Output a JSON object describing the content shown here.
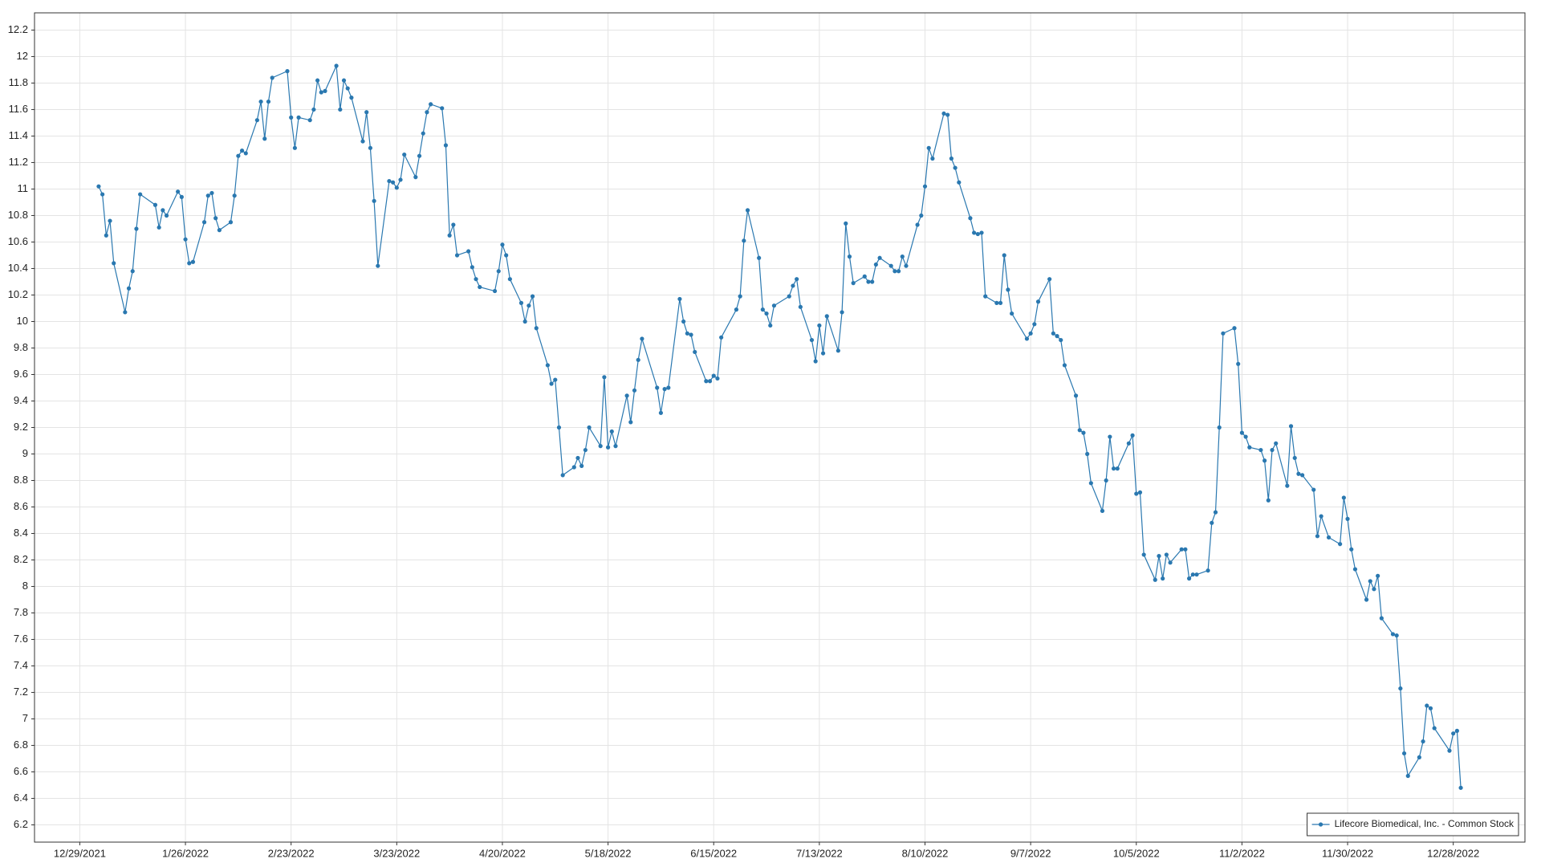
{
  "chart_data": {
    "type": "line",
    "x": [
      "2022-01-03",
      "2022-01-04",
      "2022-01-05",
      "2022-01-06",
      "2022-01-07",
      "2022-01-10",
      "2022-01-11",
      "2022-01-12",
      "2022-01-13",
      "2022-01-14",
      "2022-01-18",
      "2022-01-19",
      "2022-01-20",
      "2022-01-21",
      "2022-01-24",
      "2022-01-25",
      "2022-01-26",
      "2022-01-27",
      "2022-01-28",
      "2022-01-31",
      "2022-02-01",
      "2022-02-02",
      "2022-02-03",
      "2022-02-04",
      "2022-02-07",
      "2022-02-08",
      "2022-02-09",
      "2022-02-10",
      "2022-02-11",
      "2022-02-14",
      "2022-02-15",
      "2022-02-16",
      "2022-02-17",
      "2022-02-18",
      "2022-02-22",
      "2022-02-23",
      "2022-02-24",
      "2022-02-25",
      "2022-02-28",
      "2022-03-01",
      "2022-03-02",
      "2022-03-03",
      "2022-03-04",
      "2022-03-07",
      "2022-03-08",
      "2022-03-09",
      "2022-03-10",
      "2022-03-11",
      "2022-03-14",
      "2022-03-15",
      "2022-03-16",
      "2022-03-17",
      "2022-03-18",
      "2022-03-21",
      "2022-03-22",
      "2022-03-23",
      "2022-03-24",
      "2022-03-25",
      "2022-03-28",
      "2022-03-29",
      "2022-03-30",
      "2022-03-31",
      "2022-04-01",
      "2022-04-04",
      "2022-04-05",
      "2022-04-06",
      "2022-04-07",
      "2022-04-08",
      "2022-04-11",
      "2022-04-12",
      "2022-04-13",
      "2022-04-14",
      "2022-04-18",
      "2022-04-19",
      "2022-04-20",
      "2022-04-21",
      "2022-04-22",
      "2022-04-25",
      "2022-04-26",
      "2022-04-27",
      "2022-04-28",
      "2022-04-29",
      "2022-05-02",
      "2022-05-03",
      "2022-05-04",
      "2022-05-05",
      "2022-05-06",
      "2022-05-09",
      "2022-05-10",
      "2022-05-11",
      "2022-05-12",
      "2022-05-13",
      "2022-05-16",
      "2022-05-17",
      "2022-05-18",
      "2022-05-19",
      "2022-05-20",
      "2022-05-23",
      "2022-05-24",
      "2022-05-25",
      "2022-05-26",
      "2022-05-27",
      "2022-05-31",
      "2022-06-01",
      "2022-06-02",
      "2022-06-03",
      "2022-06-06",
      "2022-06-07",
      "2022-06-08",
      "2022-06-09",
      "2022-06-10",
      "2022-06-13",
      "2022-06-14",
      "2022-06-15",
      "2022-06-16",
      "2022-06-17",
      "2022-06-21",
      "2022-06-22",
      "2022-06-23",
      "2022-06-24",
      "2022-06-27",
      "2022-06-28",
      "2022-06-29",
      "2022-06-30",
      "2022-07-01",
      "2022-07-05",
      "2022-07-06",
      "2022-07-07",
      "2022-07-08",
      "2022-07-11",
      "2022-07-12",
      "2022-07-13",
      "2022-07-14",
      "2022-07-15",
      "2022-07-18",
      "2022-07-19",
      "2022-07-20",
      "2022-07-21",
      "2022-07-22",
      "2022-07-25",
      "2022-07-26",
      "2022-07-27",
      "2022-07-28",
      "2022-07-29",
      "2022-08-01",
      "2022-08-02",
      "2022-08-03",
      "2022-08-04",
      "2022-08-05",
      "2022-08-08",
      "2022-08-09",
      "2022-08-10",
      "2022-08-11",
      "2022-08-12",
      "2022-08-15",
      "2022-08-16",
      "2022-08-17",
      "2022-08-18",
      "2022-08-19",
      "2022-08-22",
      "2022-08-23",
      "2022-08-24",
      "2022-08-25",
      "2022-08-26",
      "2022-08-29",
      "2022-08-30",
      "2022-08-31",
      "2022-09-01",
      "2022-09-02",
      "2022-09-06",
      "2022-09-07",
      "2022-09-08",
      "2022-09-09",
      "2022-09-12",
      "2022-09-13",
      "2022-09-14",
      "2022-09-15",
      "2022-09-16",
      "2022-09-19",
      "2022-09-20",
      "2022-09-21",
      "2022-09-22",
      "2022-09-23",
      "2022-09-26",
      "2022-09-27",
      "2022-09-28",
      "2022-09-29",
      "2022-09-30",
      "2022-10-03",
      "2022-10-04",
      "2022-10-05",
      "2022-10-06",
      "2022-10-07",
      "2022-10-10",
      "2022-10-11",
      "2022-10-12",
      "2022-10-13",
      "2022-10-14",
      "2022-10-17",
      "2022-10-18",
      "2022-10-19",
      "2022-10-20",
      "2022-10-21",
      "2022-10-24",
      "2022-10-25",
      "2022-10-26",
      "2022-10-27",
      "2022-10-28",
      "2022-10-31",
      "2022-11-01",
      "2022-11-02",
      "2022-11-03",
      "2022-11-04",
      "2022-11-07",
      "2022-11-08",
      "2022-11-09",
      "2022-11-10",
      "2022-11-11",
      "2022-11-14",
      "2022-11-15",
      "2022-11-16",
      "2022-11-17",
      "2022-11-18",
      "2022-11-21",
      "2022-11-22",
      "2022-11-23",
      "2022-11-25",
      "2022-11-28",
      "2022-11-29",
      "2022-11-30",
      "2022-12-01",
      "2022-12-02",
      "2022-12-05",
      "2022-12-06",
      "2022-12-07",
      "2022-12-08",
      "2022-12-09",
      "2022-12-12",
      "2022-12-13",
      "2022-12-14",
      "2022-12-15",
      "2022-12-16",
      "2022-12-19",
      "2022-12-20",
      "2022-12-21",
      "2022-12-22",
      "2022-12-23",
      "2022-12-27",
      "2022-12-28",
      "2022-12-29",
      "2022-12-30"
    ],
    "series": [
      {
        "name": "Lifecore Biomedical, Inc. - Common Stock",
        "color": "#2a78b0",
        "values": [
          11.02,
          10.96,
          10.65,
          10.76,
          10.44,
          10.07,
          10.25,
          10.38,
          10.7,
          10.96,
          10.88,
          10.71,
          10.84,
          10.8,
          10.98,
          10.94,
          10.62,
          10.44,
          10.45,
          10.75,
          10.95,
          10.97,
          10.78,
          10.69,
          10.75,
          10.95,
          11.25,
          11.29,
          11.27,
          11.52,
          11.66,
          11.38,
          11.66,
          11.84,
          11.89,
          11.54,
          11.31,
          11.54,
          11.52,
          11.6,
          11.82,
          11.73,
          11.74,
          11.93,
          11.6,
          11.82,
          11.76,
          11.69,
          11.36,
          11.58,
          11.31,
          10.91,
          10.42,
          11.06,
          11.05,
          11.01,
          11.07,
          11.26,
          11.09,
          11.25,
          11.42,
          11.58,
          11.64,
          11.61,
          11.33,
          10.65,
          10.73,
          10.5,
          10.53,
          10.41,
          10.32,
          10.26,
          10.23,
          10.38,
          10.58,
          10.5,
          10.32,
          10.14,
          10.0,
          10.12,
          10.19,
          9.95,
          9.67,
          9.53,
          9.56,
          9.2,
          8.84,
          8.9,
          8.97,
          8.91,
          9.03,
          9.2,
          9.06,
          9.58,
          9.05,
          9.17,
          9.06,
          9.44,
          9.24,
          9.48,
          9.71,
          9.87,
          9.5,
          9.31,
          9.49,
          9.5,
          10.17,
          10.0,
          9.91,
          9.9,
          9.77,
          9.55,
          9.55,
          9.59,
          9.57,
          9.88,
          10.09,
          10.19,
          10.61,
          10.84,
          10.48,
          10.09,
          10.06,
          9.97,
          10.12,
          10.19,
          10.27,
          10.32,
          10.11,
          9.86,
          9.7,
          9.97,
          9.76,
          10.04,
          9.78,
          10.07,
          10.74,
          10.49,
          10.29,
          10.34,
          10.3,
          10.3,
          10.43,
          10.48,
          10.42,
          10.38,
          10.38,
          10.49,
          10.42,
          10.73,
          10.8,
          11.02,
          11.31,
          11.23,
          11.57,
          11.56,
          11.23,
          11.16,
          11.05,
          10.78,
          10.67,
          10.66,
          10.67,
          10.19,
          10.14,
          10.14,
          10.5,
          10.24,
          10.06,
          9.87,
          9.91,
          9.98,
          10.15,
          10.32,
          9.91,
          9.89,
          9.86,
          9.67,
          9.44,
          9.18,
          9.16,
          9.0,
          8.78,
          8.57,
          8.8,
          9.13,
          8.89,
          8.89,
          9.08,
          9.14,
          8.7,
          8.71,
          8.24,
          8.05,
          8.23,
          8.06,
          8.24,
          8.18,
          8.28,
          8.28,
          8.06,
          8.09,
          8.09,
          8.12,
          8.48,
          8.56,
          9.2,
          9.91,
          9.95,
          9.68,
          9.16,
          9.13,
          9.05,
          9.03,
          8.95,
          8.65,
          9.03,
          9.08,
          8.76,
          9.21,
          8.97,
          8.85,
          8.84,
          8.73,
          8.38,
          8.53,
          8.37,
          8.32,
          8.67,
          8.51,
          8.28,
          8.13,
          7.9,
          8.04,
          7.98,
          8.08,
          7.76,
          7.64,
          7.63,
          7.23,
          6.74,
          6.57,
          6.71,
          6.83,
          7.1,
          7.08,
          6.93,
          6.76,
          6.89,
          6.91,
          6.48
        ]
      }
    ],
    "xlim": [
      "2021-12-17",
      "2023-01-16"
    ],
    "xticks": [
      {
        "value": "2021-12-29",
        "label": "12/29/2021"
      },
      {
        "value": "2022-01-26",
        "label": "1/26/2022"
      },
      {
        "value": "2022-02-23",
        "label": "2/23/2022"
      },
      {
        "value": "2022-03-23",
        "label": "3/23/2022"
      },
      {
        "value": "2022-04-20",
        "label": "4/20/2022"
      },
      {
        "value": "2022-05-18",
        "label": "5/18/2022"
      },
      {
        "value": "2022-06-15",
        "label": "6/15/2022"
      },
      {
        "value": "2022-07-13",
        "label": "7/13/2022"
      },
      {
        "value": "2022-08-10",
        "label": "8/10/2022"
      },
      {
        "value": "2022-09-07",
        "label": "9/7/2022"
      },
      {
        "value": "2022-10-05",
        "label": "10/5/2022"
      },
      {
        "value": "2022-11-02",
        "label": "11/2/2022"
      },
      {
        "value": "2022-11-30",
        "label": "11/30/2022"
      },
      {
        "value": "2022-12-28",
        "label": "12/28/2022"
      }
    ],
    "ylim": [
      6.07,
      12.33
    ],
    "yticks": [
      6.2,
      6.4,
      6.6,
      6.8,
      7,
      7.2,
      7.4,
      7.6,
      7.8,
      8,
      8.2,
      8.4,
      8.6,
      8.8,
      9,
      9.2,
      9.4,
      9.6,
      9.8,
      10,
      10.2,
      10.4,
      10.6,
      10.8,
      11,
      11.2,
      11.4,
      11.6,
      11.8,
      12,
      12.2
    ],
    "grid": true,
    "legend": "lower right"
  }
}
